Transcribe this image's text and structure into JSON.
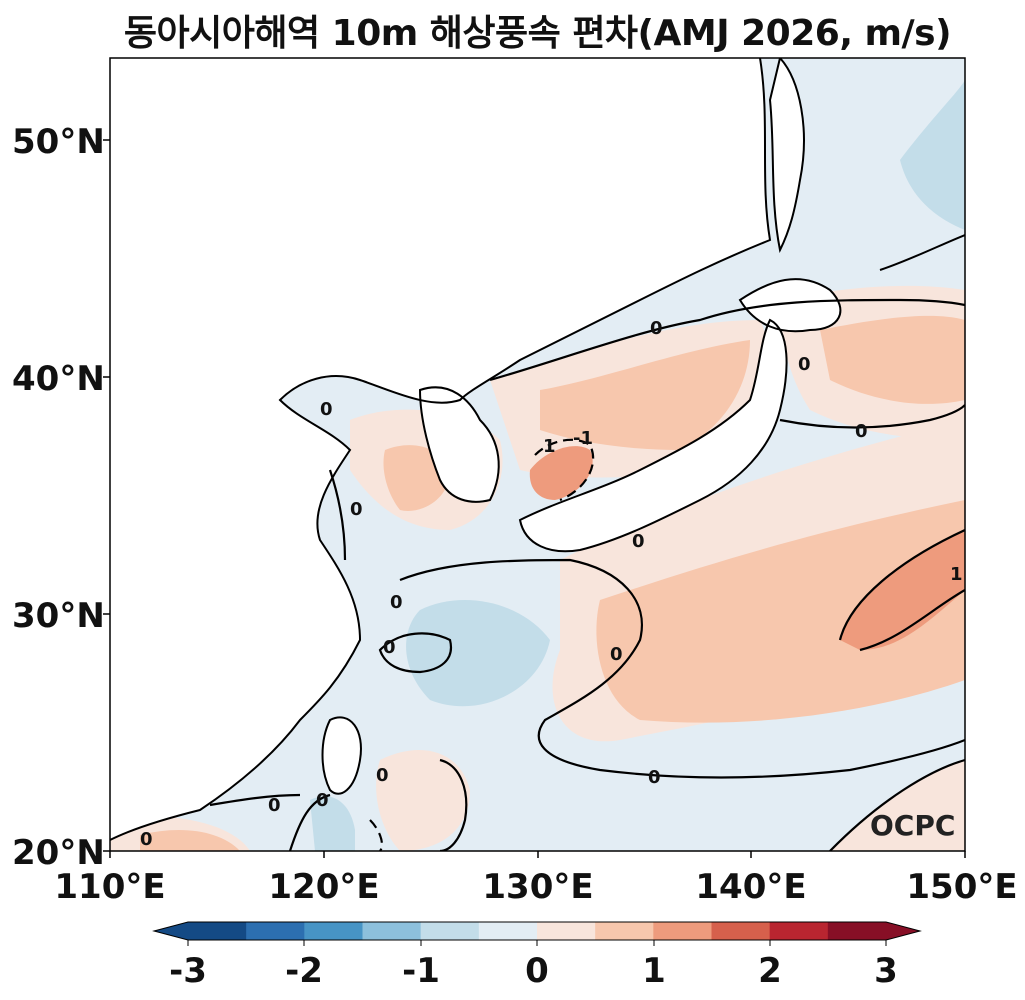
{
  "title": "동아시아해역 10m 해상풍속 편차(AMJ 2026, m/s)",
  "lat_labels": [
    "50°N",
    "40°N",
    "30°N",
    "20°N"
  ],
  "lon_labels": [
    "110°E",
    "120°E",
    "130°E",
    "140°E",
    "150°E"
  ],
  "colorbar": {
    "labels": [
      "-3",
      "-2",
      "-1",
      "0",
      "1",
      "2",
      "3"
    ],
    "colors": [
      "#144a85",
      "#2c6fb0",
      "#4794c5",
      "#8dc0dc",
      "#c3dde9",
      "#e3edf4",
      "#f8e5dc",
      "#f7c7ad",
      "#ee9b7d",
      "#d6604c",
      "#b92530",
      "#870f26"
    ]
  },
  "contour_labels": [
    "0",
    "0",
    "0",
    "0",
    "0",
    "0",
    "0",
    "0",
    "0",
    "0",
    "0",
    "0",
    "0",
    "1",
    "-1",
    "1",
    "0"
  ],
  "logo": "OCPC"
}
